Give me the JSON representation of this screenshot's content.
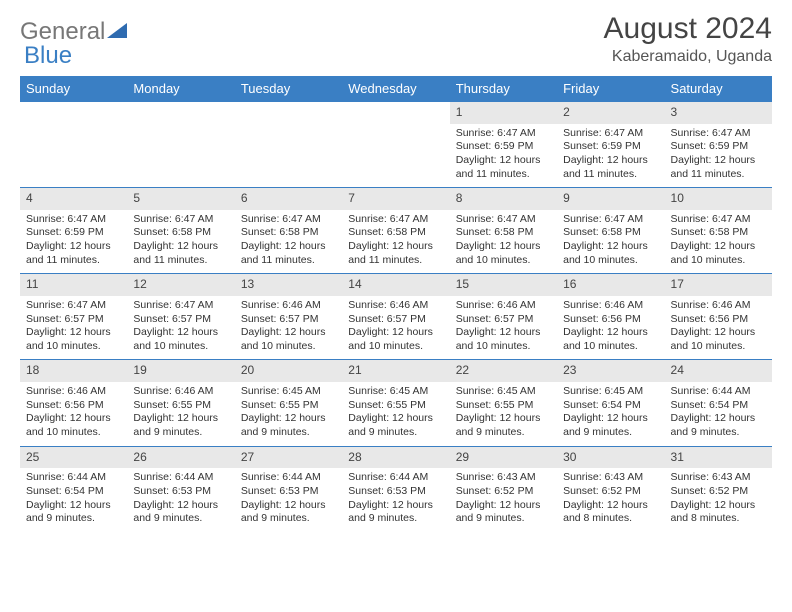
{
  "logo": {
    "text1": "General",
    "text2": "Blue"
  },
  "title": "August 2024",
  "location": "Kaberamaido, Uganda",
  "colors": {
    "header_bg": "#3a7fc4",
    "header_text": "#ffffff",
    "daynum_bg": "#e8e8e8",
    "border": "#3a7fc4",
    "body_text": "#333333"
  },
  "day_headers": [
    "Sunday",
    "Monday",
    "Tuesday",
    "Wednesday",
    "Thursday",
    "Friday",
    "Saturday"
  ],
  "weeks": [
    [
      null,
      null,
      null,
      null,
      {
        "n": "1",
        "sr": "6:47 AM",
        "ss": "6:59 PM",
        "dl": "12 hours and 11 minutes."
      },
      {
        "n": "2",
        "sr": "6:47 AM",
        "ss": "6:59 PM",
        "dl": "12 hours and 11 minutes."
      },
      {
        "n": "3",
        "sr": "6:47 AM",
        "ss": "6:59 PM",
        "dl": "12 hours and 11 minutes."
      }
    ],
    [
      {
        "n": "4",
        "sr": "6:47 AM",
        "ss": "6:59 PM",
        "dl": "12 hours and 11 minutes."
      },
      {
        "n": "5",
        "sr": "6:47 AM",
        "ss": "6:58 PM",
        "dl": "12 hours and 11 minutes."
      },
      {
        "n": "6",
        "sr": "6:47 AM",
        "ss": "6:58 PM",
        "dl": "12 hours and 11 minutes."
      },
      {
        "n": "7",
        "sr": "6:47 AM",
        "ss": "6:58 PM",
        "dl": "12 hours and 11 minutes."
      },
      {
        "n": "8",
        "sr": "6:47 AM",
        "ss": "6:58 PM",
        "dl": "12 hours and 10 minutes."
      },
      {
        "n": "9",
        "sr": "6:47 AM",
        "ss": "6:58 PM",
        "dl": "12 hours and 10 minutes."
      },
      {
        "n": "10",
        "sr": "6:47 AM",
        "ss": "6:58 PM",
        "dl": "12 hours and 10 minutes."
      }
    ],
    [
      {
        "n": "11",
        "sr": "6:47 AM",
        "ss": "6:57 PM",
        "dl": "12 hours and 10 minutes."
      },
      {
        "n": "12",
        "sr": "6:47 AM",
        "ss": "6:57 PM",
        "dl": "12 hours and 10 minutes."
      },
      {
        "n": "13",
        "sr": "6:46 AM",
        "ss": "6:57 PM",
        "dl": "12 hours and 10 minutes."
      },
      {
        "n": "14",
        "sr": "6:46 AM",
        "ss": "6:57 PM",
        "dl": "12 hours and 10 minutes."
      },
      {
        "n": "15",
        "sr": "6:46 AM",
        "ss": "6:57 PM",
        "dl": "12 hours and 10 minutes."
      },
      {
        "n": "16",
        "sr": "6:46 AM",
        "ss": "6:56 PM",
        "dl": "12 hours and 10 minutes."
      },
      {
        "n": "17",
        "sr": "6:46 AM",
        "ss": "6:56 PM",
        "dl": "12 hours and 10 minutes."
      }
    ],
    [
      {
        "n": "18",
        "sr": "6:46 AM",
        "ss": "6:56 PM",
        "dl": "12 hours and 10 minutes."
      },
      {
        "n": "19",
        "sr": "6:46 AM",
        "ss": "6:55 PM",
        "dl": "12 hours and 9 minutes."
      },
      {
        "n": "20",
        "sr": "6:45 AM",
        "ss": "6:55 PM",
        "dl": "12 hours and 9 minutes."
      },
      {
        "n": "21",
        "sr": "6:45 AM",
        "ss": "6:55 PM",
        "dl": "12 hours and 9 minutes."
      },
      {
        "n": "22",
        "sr": "6:45 AM",
        "ss": "6:55 PM",
        "dl": "12 hours and 9 minutes."
      },
      {
        "n": "23",
        "sr": "6:45 AM",
        "ss": "6:54 PM",
        "dl": "12 hours and 9 minutes."
      },
      {
        "n": "24",
        "sr": "6:44 AM",
        "ss": "6:54 PM",
        "dl": "12 hours and 9 minutes."
      }
    ],
    [
      {
        "n": "25",
        "sr": "6:44 AM",
        "ss": "6:54 PM",
        "dl": "12 hours and 9 minutes."
      },
      {
        "n": "26",
        "sr": "6:44 AM",
        "ss": "6:53 PM",
        "dl": "12 hours and 9 minutes."
      },
      {
        "n": "27",
        "sr": "6:44 AM",
        "ss": "6:53 PM",
        "dl": "12 hours and 9 minutes."
      },
      {
        "n": "28",
        "sr": "6:44 AM",
        "ss": "6:53 PM",
        "dl": "12 hours and 9 minutes."
      },
      {
        "n": "29",
        "sr": "6:43 AM",
        "ss": "6:52 PM",
        "dl": "12 hours and 9 minutes."
      },
      {
        "n": "30",
        "sr": "6:43 AM",
        "ss": "6:52 PM",
        "dl": "12 hours and 8 minutes."
      },
      {
        "n": "31",
        "sr": "6:43 AM",
        "ss": "6:52 PM",
        "dl": "12 hours and 8 minutes."
      }
    ]
  ],
  "labels": {
    "sunrise": "Sunrise: ",
    "sunset": "Sunset: ",
    "daylight": "Daylight: "
  }
}
